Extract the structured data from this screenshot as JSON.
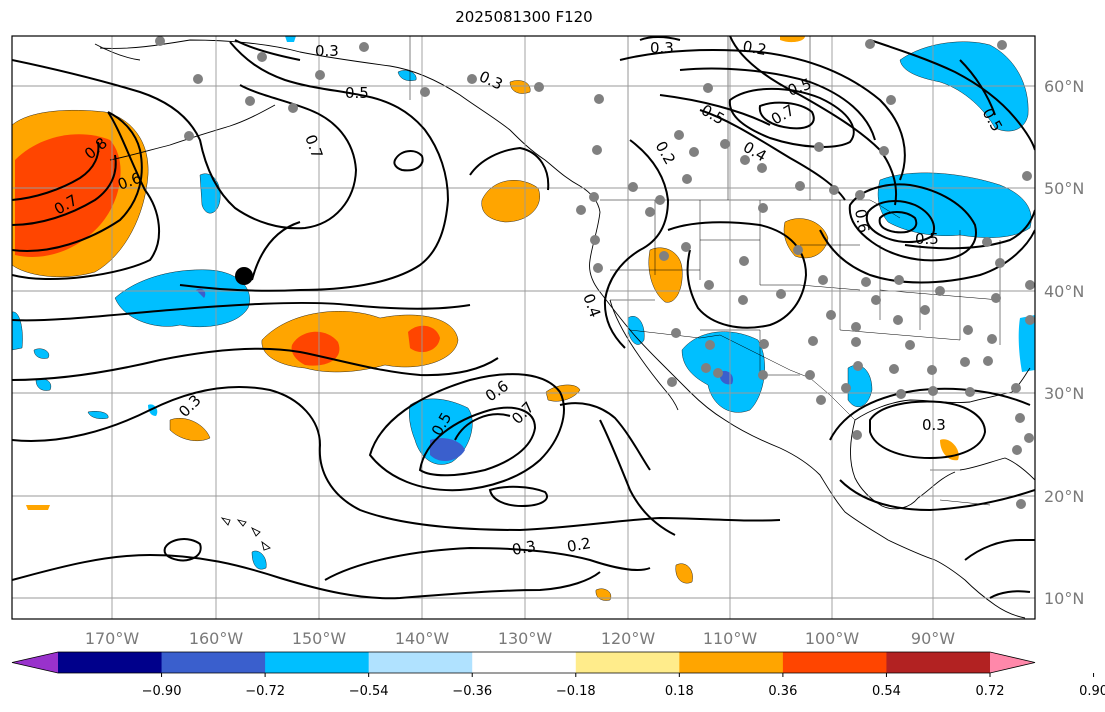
{
  "title": "2025081300 F120",
  "map": {
    "lon_labels": [
      "170°W",
      "160°W",
      "150°W",
      "140°W",
      "130°W",
      "120°W",
      "110°W",
      "100°W",
      "90°W"
    ],
    "lat_labels": [
      "60°N",
      "50°N",
      "40°N",
      "30°N",
      "20°N",
      "10°N"
    ],
    "contour_labels": [
      "0.3",
      "0.3",
      "0.5",
      "0.7",
      "0.8",
      "0.7",
      "0.6",
      "0.3",
      "0.2",
      "0.5",
      "0.7",
      "0.2",
      "0.4",
      "0.5",
      "0.5",
      "0.3",
      "0.6",
      "0.7",
      "0.5",
      "0.3",
      "0.2",
      "0.3",
      "0.5",
      "0.4",
      "0.6"
    ],
    "colors": {
      "land_outline": "#000000",
      "grid": "#999999",
      "contour": "#000000",
      "station_dot": "#808080",
      "marker": "#000000"
    }
  },
  "colorbar": {
    "tick_labels": [
      "−0.90",
      "−0.72",
      "−0.54",
      "−0.36",
      "−0.18",
      "0.18",
      "0.36",
      "0.54",
      "0.72",
      "0.90"
    ],
    "colors": [
      "#9932cc",
      "#00008b",
      "#3a5fcd",
      "#00bfff",
      "#b0e2ff",
      "#ffffff",
      "#ffec8b",
      "#ffa500",
      "#ff4500",
      "#b22222",
      "#ff88aa"
    ]
  }
}
